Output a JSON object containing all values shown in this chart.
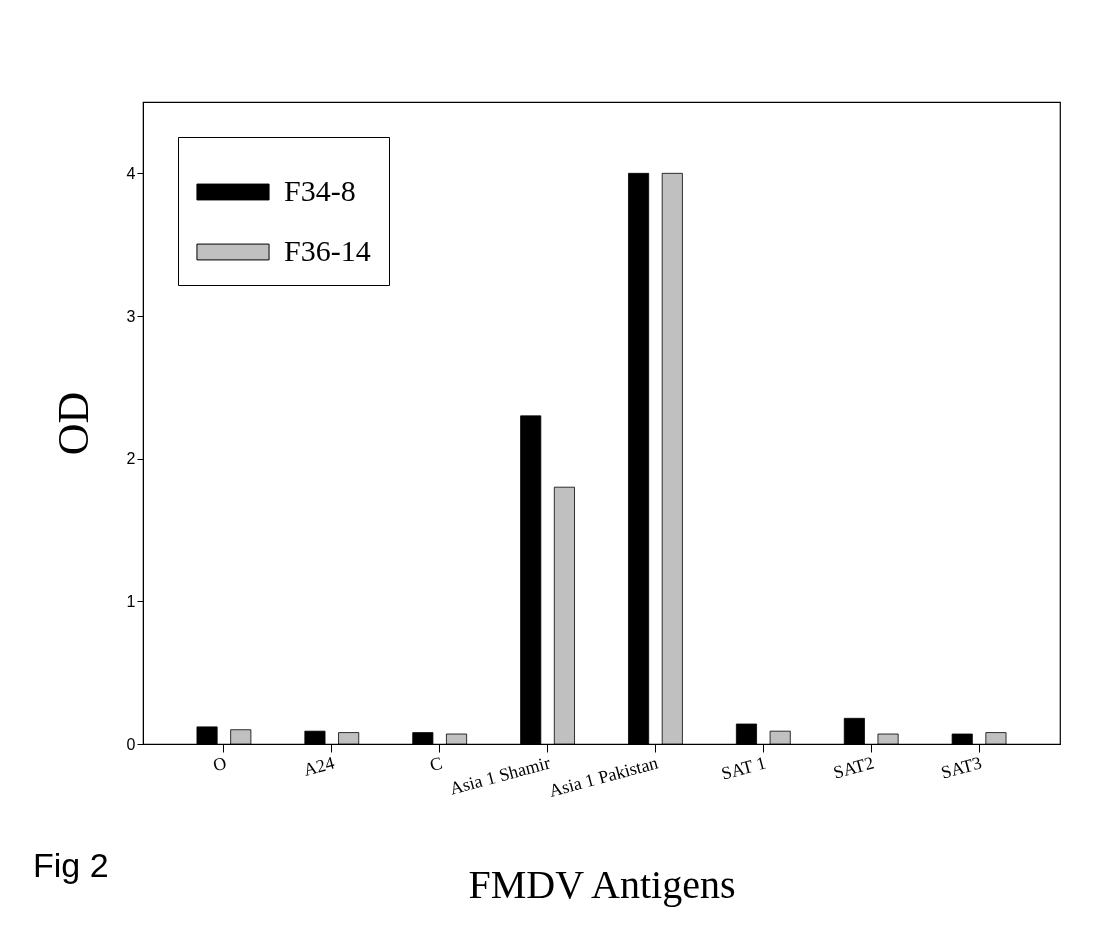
{
  "chart_data": {
    "type": "bar",
    "xlabel": "FMDV Antigens",
    "ylabel": "OD",
    "categories": [
      "O",
      "A24",
      "C",
      "Asia 1 Shamir",
      "Asia 1 Pakistan",
      "SAT 1",
      "SAT2",
      "SAT3"
    ],
    "series": [
      {
        "name": "F34-8",
        "color": "#000000",
        "values": [
          0.12,
          0.09,
          0.08,
          2.3,
          4.0,
          0.14,
          0.18,
          0.07
        ]
      },
      {
        "name": "F36-14",
        "color": "#c0c0c0",
        "values": [
          0.1,
          0.08,
          0.07,
          1.8,
          4.0,
          0.09,
          0.07,
          0.08
        ]
      }
    ],
    "ylim": [
      0,
      4.5
    ],
    "yticks": [
      0,
      1,
      2,
      3,
      4
    ],
    "grid": false,
    "legend": "top left",
    "annotations": [
      "Fig 2"
    ]
  }
}
